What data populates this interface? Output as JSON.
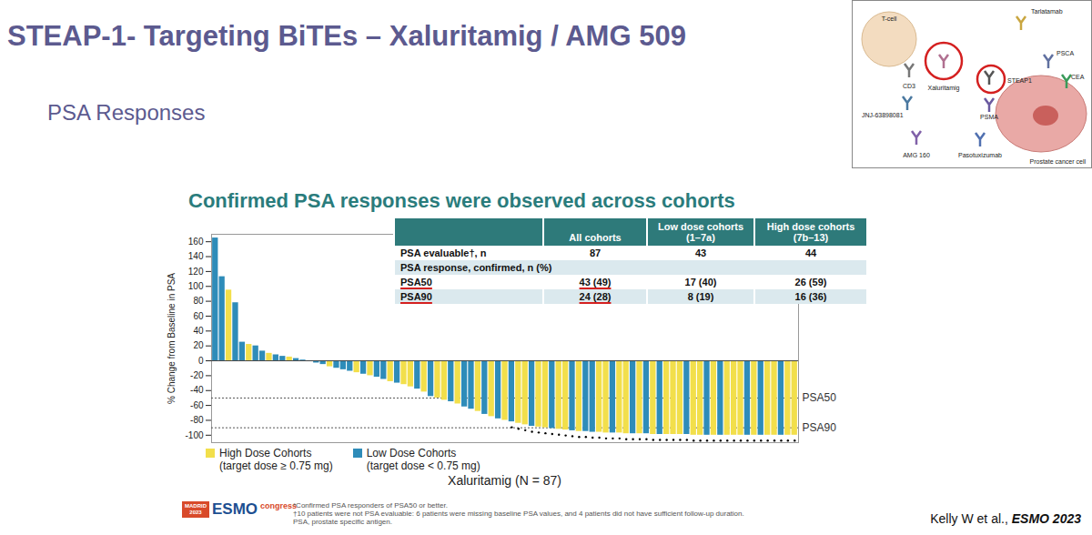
{
  "slide": {
    "title": "STEAP-1- Targeting BiTEs – Xaluritamig / AMG 509",
    "subtitle": "PSA Responses",
    "inset": {
      "labels": [
        "T-cell",
        "CD3",
        "Xaluritamig",
        "Tarlatamab",
        "STEAP1",
        "PSCA",
        "CEA",
        "JNJ-63898081",
        "PSMA",
        "AMG 160",
        "Pasotuxizumab",
        "Prostate cancer cell"
      ]
    },
    "logo": {
      "lines": [
        "MADRID",
        "2023",
        "ESMO",
        "congress"
      ]
    },
    "footnotes": [
      "*Confirmed PSA responders of PSA50 or better.",
      "†10 patients were not PSA evaluable: 6 patients were missing baseline PSA values, and 4 patients did not have sufficient follow-up duration.",
      "PSA, prostate specific antigen."
    ],
    "citation": {
      "authors": "Kelly W et al.,",
      "source": "ESMO 2023"
    }
  },
  "table": {
    "header": [
      "All cohorts",
      "Low dose cohorts (1–7a)",
      "High dose cohorts (7b–13)"
    ],
    "rows": [
      [
        "PSA evaluable†, n",
        "87",
        "43",
        "44"
      ],
      [
        "PSA response, confirmed, n (%)"
      ],
      [
        "PSA50",
        "43 (49)",
        "17 (40)",
        "26 (59)"
      ],
      [
        "PSA90",
        "24 (28)",
        "8 (19)",
        "16 (36)"
      ]
    ],
    "underlined": [
      [
        2,
        0
      ],
      [
        2,
        1
      ],
      [
        3,
        0
      ],
      [
        3,
        1
      ]
    ]
  },
  "chart_data": {
    "type": "bar",
    "title": "Confirmed PSA responses were observed across cohorts",
    "y_label": "% Change from Baseline in PSA",
    "x_label": "Xaluritamig (N = 87)",
    "categories": [
      null,
      null,
      null,
      null,
      null,
      null,
      null,
      null,
      null,
      null,
      null,
      null,
      null,
      null,
      null,
      null,
      null,
      null,
      null,
      null,
      null,
      null,
      null,
      null,
      null,
      null,
      null,
      null,
      null,
      null,
      null,
      null,
      null,
      null,
      null,
      null,
      null,
      null,
      null,
      null,
      null,
      null,
      null,
      null,
      null,
      null,
      null,
      null,
      null,
      null,
      null,
      null,
      null,
      null,
      null,
      null,
      null,
      null,
      null,
      null,
      null,
      null,
      null,
      null,
      null,
      null,
      null,
      null,
      null,
      null,
      null,
      null,
      null,
      null,
      null,
      null,
      null,
      null,
      null,
      null,
      null,
      null,
      null,
      null,
      null,
      null,
      null
    ],
    "series": [
      {
        "name": "High Dose Cohorts (target dose ≥ 0.75 mg)",
        "color": "#f2df4b",
        "values": [
          null,
          null,
          95,
          null,
          null,
          22,
          null,
          null,
          10,
          null,
          null,
          5,
          null,
          null,
          null,
          null,
          null,
          -8,
          null,
          null,
          null,
          -16,
          null,
          -20,
          null,
          null,
          -28,
          null,
          -32,
          -35,
          null,
          -42,
          null,
          -50,
          -53,
          null,
          -58,
          null,
          null,
          -68,
          null,
          -75,
          null,
          -80,
          null,
          -84,
          -86,
          null,
          -89,
          -90,
          null,
          -92,
          -93,
          null,
          -95,
          null,
          null,
          -96,
          -97,
          null,
          -97,
          -98,
          null,
          -98,
          null,
          -99,
          null,
          -99,
          -99,
          -99,
          null,
          -100,
          -100,
          null,
          -100,
          null,
          -100,
          -100,
          -100,
          null,
          -100,
          null,
          -100,
          -100,
          null,
          -100,
          -100
        ]
      },
      {
        "name": "Low Dose Cohorts (target dose < 0.75 mg)",
        "color": "#2e8cb9",
        "values": [
          165,
          113,
          null,
          78,
          25,
          null,
          20,
          13,
          null,
          8,
          6,
          null,
          3,
          1,
          -1,
          -3,
          -5,
          null,
          -10,
          -12,
          -14,
          null,
          -18,
          null,
          -22,
          -25,
          null,
          -30,
          null,
          null,
          -38,
          null,
          -48,
          null,
          null,
          -55,
          null,
          -62,
          -65,
          null,
          -72,
          null,
          -78,
          null,
          -82,
          null,
          null,
          -88,
          null,
          null,
          -91,
          null,
          null,
          -94,
          null,
          -95,
          -96,
          null,
          null,
          -97,
          null,
          null,
          -98,
          null,
          -98,
          null,
          -99,
          null,
          null,
          null,
          -99,
          null,
          null,
          -100,
          null,
          -100,
          null,
          null,
          null,
          -100,
          null,
          -100,
          null,
          null,
          -100,
          null,
          null
        ]
      }
    ],
    "confirmed_responders": [
      false,
      false,
      false,
      false,
      false,
      false,
      false,
      false,
      false,
      false,
      false,
      false,
      false,
      false,
      false,
      false,
      false,
      false,
      false,
      false,
      false,
      false,
      false,
      false,
      false,
      false,
      false,
      false,
      false,
      false,
      false,
      false,
      false,
      false,
      false,
      false,
      false,
      false,
      false,
      false,
      false,
      false,
      false,
      false,
      true,
      true,
      true,
      true,
      true,
      true,
      true,
      true,
      true,
      true,
      true,
      true,
      true,
      true,
      true,
      true,
      true,
      true,
      true,
      true,
      true,
      true,
      true,
      true,
      true,
      true,
      true,
      true,
      true,
      true,
      true,
      true,
      true,
      true,
      true,
      true,
      true,
      true,
      true,
      true,
      true,
      true,
      true
    ],
    "reference_lines": [
      {
        "value": -50,
        "label": "PSA50"
      },
      {
        "value": -90,
        "label": "PSA90"
      }
    ],
    "ylim": [
      -110,
      170
    ],
    "yticks": [
      -100,
      -80,
      -60,
      -40,
      -20,
      0,
      20,
      40,
      60,
      80,
      100,
      120,
      140,
      160
    ],
    "grid": false,
    "legend": "bottom-left",
    "tick_labels": "y"
  }
}
